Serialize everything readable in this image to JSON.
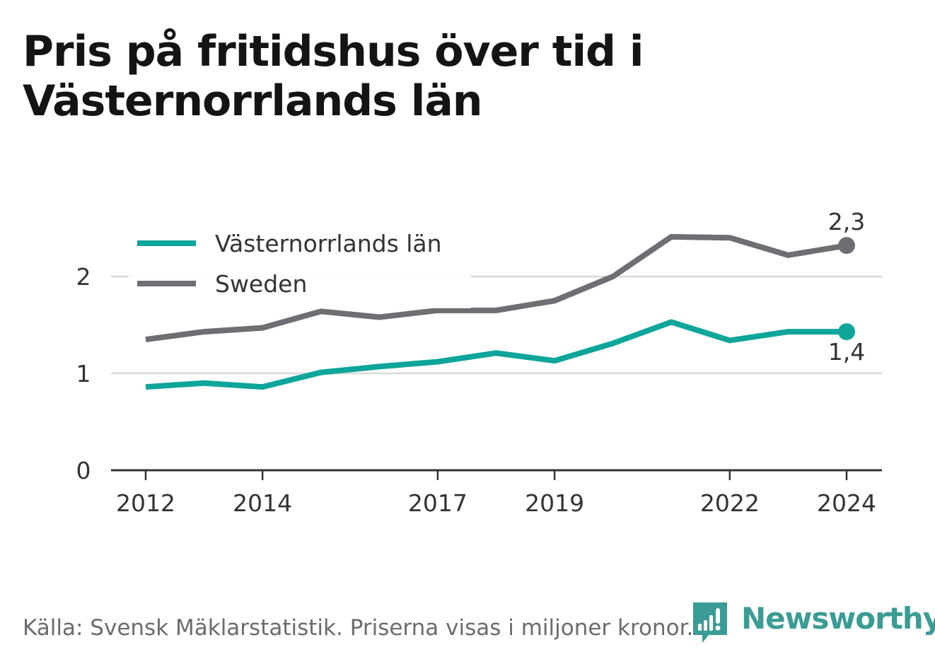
{
  "title": "Pris på fritidshus över tid i Västernorrlands län",
  "footer": {
    "source": "Källa: Svensk Mäklarstatistik. Priserna visas i miljoner kronor."
  },
  "brand": {
    "name": "Newsworthy",
    "icon": "newsworthy-bar-chart-logo"
  },
  "colors": {
    "region": "#0ea59a",
    "sweden": "#6e6e74",
    "grid": "#d9d9d9",
    "axis": "#333333",
    "brand": "#3a9c94"
  },
  "chart_data": {
    "type": "line",
    "title": "Pris på fritidshus över tid i Västernorrlands län",
    "x": [
      2012,
      2013,
      2014,
      2015,
      2016,
      2017,
      2018,
      2019,
      2020,
      2021,
      2022,
      2023,
      2024
    ],
    "x_ticks": [
      "2012",
      "2014",
      "2017",
      "2019",
      "2022",
      "2024"
    ],
    "y_ticks": [
      "0",
      "1",
      "2"
    ],
    "ylim": [
      0,
      2.6
    ],
    "grid": "horizontal",
    "legend": "top-left",
    "series": [
      {
        "name": "Västernorrlands län",
        "color": "#0ea59a",
        "values": [
          0.86,
          0.9,
          0.86,
          1.01,
          1.07,
          1.12,
          1.21,
          1.13,
          1.31,
          1.53,
          1.34,
          1.43,
          1.43
        ],
        "end_label": "1,4"
      },
      {
        "name": "Sweden",
        "color": "#6e6e74",
        "values": [
          1.35,
          1.43,
          1.47,
          1.64,
          1.58,
          1.65,
          1.65,
          1.75,
          2.0,
          2.41,
          2.4,
          2.22,
          2.32
        ],
        "end_label": "2,3"
      }
    ]
  }
}
